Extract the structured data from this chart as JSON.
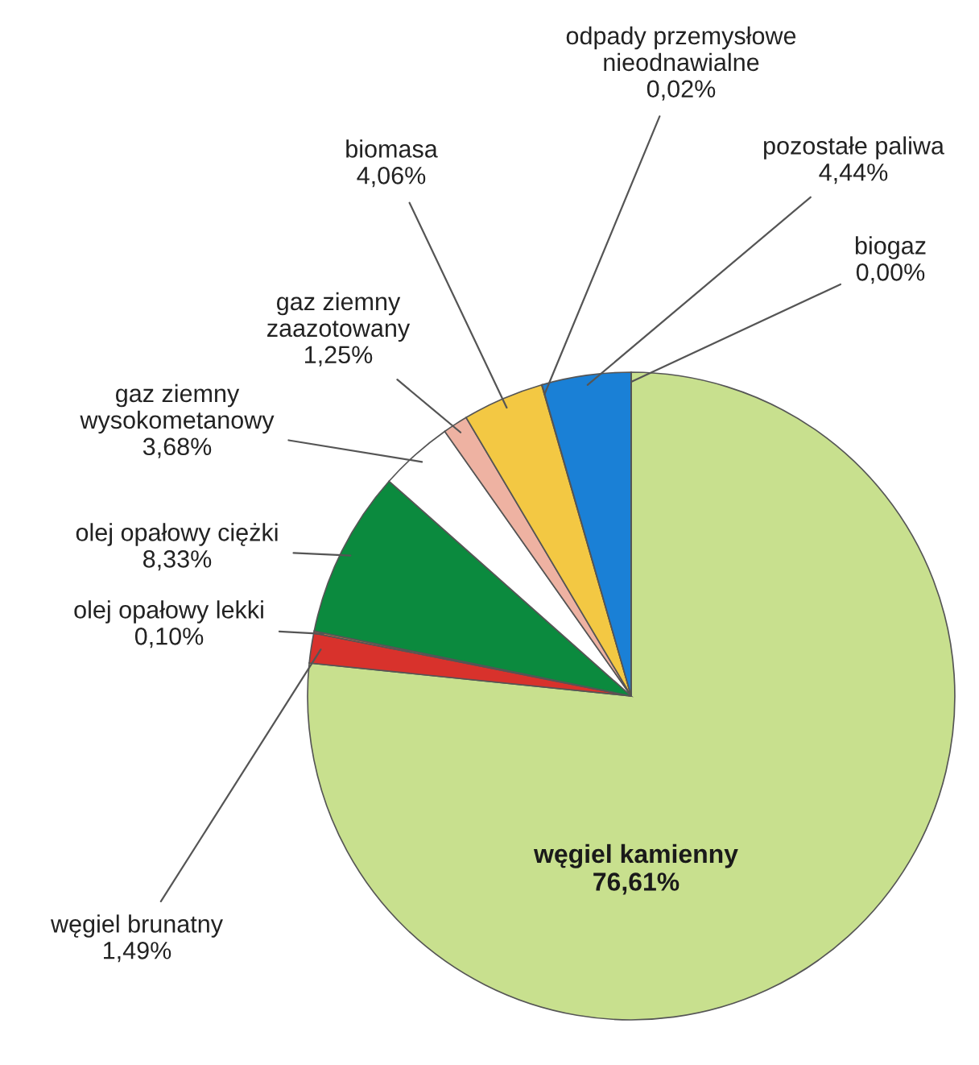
{
  "chart_data": {
    "type": "pie",
    "categories": [
      "węgiel kamienny",
      "węgiel brunatny",
      "olej opałowy lekki",
      "olej opałowy ciężki",
      "gaz ziemny wysokometanowy",
      "gaz ziemny zaazotowany",
      "biomasa",
      "odpady przemysłowe nieodnawialne",
      "pozostałe paliwa",
      "biogaz"
    ],
    "values": [
      76.61,
      1.49,
      0.1,
      8.33,
      3.68,
      1.25,
      4.06,
      0.02,
      4.44,
      0.0
    ],
    "value_labels": [
      "76,61%",
      "1,49%",
      "0,10%",
      "8,33%",
      "3,68%",
      "1,25%",
      "4,06%",
      "0,02%",
      "4,44%",
      "0,00%"
    ],
    "colors": [
      "#c8e08e",
      "#d8322c",
      "#e8803a",
      "#0b8a3e",
      "#ffffff",
      "#eeb2a2",
      "#f3c843",
      "#8a7a50",
      "#1a80d6",
      "#6aa0c0"
    ]
  }
}
